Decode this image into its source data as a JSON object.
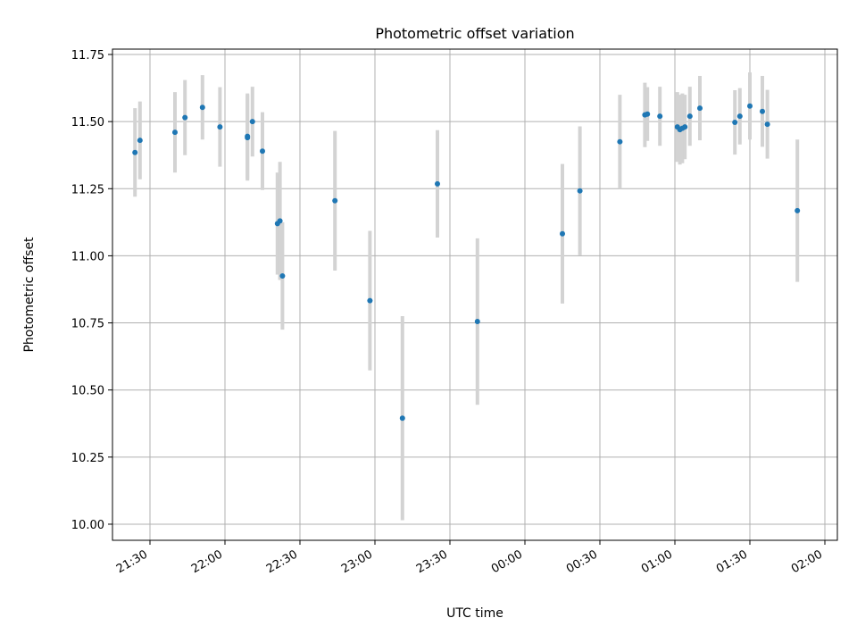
{
  "chart_data": {
    "type": "scatter",
    "title": "Photometric offset variation",
    "xlabel": "UTC time",
    "ylabel": "Photometric offset",
    "x_unit": "UTC time (HH:MM)",
    "xlim": [
      "21:15",
      "02:05"
    ],
    "ylim": [
      9.94,
      11.77
    ],
    "x_ticks": [
      "21:30",
      "22:00",
      "22:30",
      "23:00",
      "23:30",
      "00:00",
      "00:30",
      "01:00",
      "01:30",
      "02:00"
    ],
    "y_ticks": [
      "10.00",
      "10.25",
      "10.50",
      "10.75",
      "11.00",
      "11.25",
      "11.50",
      "11.75"
    ],
    "grid": true,
    "colors": {
      "points": "#1f77b4",
      "error_bars": "#d3d3d3",
      "grid": "#b0b0b0"
    },
    "points": [
      {
        "x": "21:24",
        "y": 11.385,
        "err": 0.165
      },
      {
        "x": "21:26",
        "y": 11.43,
        "err": 0.145
      },
      {
        "x": "21:40",
        "y": 11.46,
        "err": 0.15
      },
      {
        "x": "21:44",
        "y": 11.515,
        "err": 0.14
      },
      {
        "x": "21:51",
        "y": 11.553,
        "err": 0.12
      },
      {
        "x": "21:58",
        "y": 11.48,
        "err": 0.148
      },
      {
        "x": "22:09",
        "y": 11.44,
        "err": 0.16
      },
      {
        "x": "22:09",
        "y": 11.445,
        "err": 0.16
      },
      {
        "x": "22:11",
        "y": 11.5,
        "err": 0.13
      },
      {
        "x": "22:15",
        "y": 11.39,
        "err": 0.145
      },
      {
        "x": "22:21",
        "y": 11.12,
        "err": 0.19
      },
      {
        "x": "22:22",
        "y": 11.13,
        "err": 0.22
      },
      {
        "x": "22:23",
        "y": 10.925,
        "err": 0.2
      },
      {
        "x": "22:44",
        "y": 11.205,
        "err": 0.26
      },
      {
        "x": "22:58",
        "y": 10.833,
        "err": 0.26
      },
      {
        "x": "23:11",
        "y": 10.395,
        "err": 0.38
      },
      {
        "x": "23:25",
        "y": 11.268,
        "err": 0.2
      },
      {
        "x": "23:41",
        "y": 10.755,
        "err": 0.31
      },
      {
        "x": "00:15",
        "y": 11.082,
        "err": 0.26
      },
      {
        "x": "00:22",
        "y": 11.242,
        "err": 0.24
      },
      {
        "x": "00:38",
        "y": 11.425,
        "err": 0.175
      },
      {
        "x": "00:48",
        "y": 11.525,
        "err": 0.12
      },
      {
        "x": "00:49",
        "y": 11.528,
        "err": 0.1
      },
      {
        "x": "00:54",
        "y": 11.52,
        "err": 0.11
      },
      {
        "x": "01:01",
        "y": 11.48,
        "err": 0.13
      },
      {
        "x": "01:02",
        "y": 11.47,
        "err": 0.13
      },
      {
        "x": "01:03",
        "y": 11.475,
        "err": 0.13
      },
      {
        "x": "01:04",
        "y": 11.48,
        "err": 0.12
      },
      {
        "x": "01:06",
        "y": 11.52,
        "err": 0.11
      },
      {
        "x": "01:10",
        "y": 11.55,
        "err": 0.12
      },
      {
        "x": "01:24",
        "y": 11.497,
        "err": 0.12
      },
      {
        "x": "01:26",
        "y": 11.52,
        "err": 0.105
      },
      {
        "x": "01:30",
        "y": 11.558,
        "err": 0.125
      },
      {
        "x": "01:35",
        "y": 11.538,
        "err": 0.132
      },
      {
        "x": "01:37",
        "y": 11.49,
        "err": 0.128
      },
      {
        "x": "01:49",
        "y": 11.168,
        "err": 0.265
      }
    ]
  }
}
